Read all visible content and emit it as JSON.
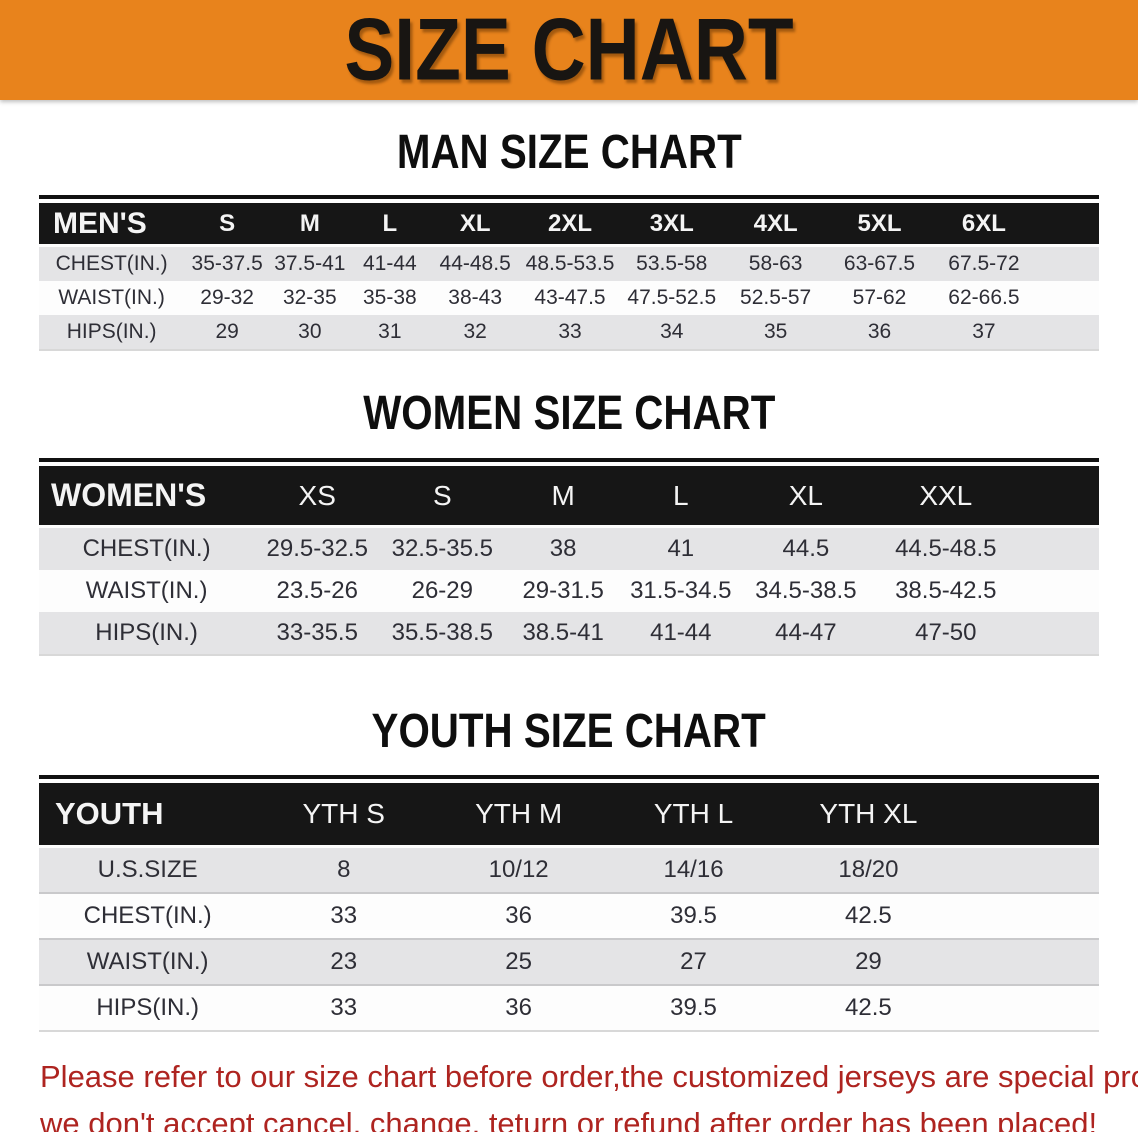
{
  "banner": {
    "title": "SIZE CHART"
  },
  "colors": {
    "banner_bg": "#e8831c",
    "table_header_bg": "#161616",
    "row_alt": "#e4e4e6",
    "cell_text": "#2e2e36",
    "footnote_red": "#ae2420"
  },
  "sections": [
    {
      "heading": "MAN SIZE CHART",
      "table": {
        "header": [
          "MEN'S",
          "S",
          "M",
          "L",
          "XL",
          "2XL",
          "3XL",
          "4XL",
          "5XL",
          "6XL"
        ],
        "rows": [
          [
            "CHEST(IN.)",
            "35-37.5",
            "37.5-41",
            "41-44",
            "44-48.5",
            "48.5-53.5",
            "53.5-58",
            "58-63",
            "63-67.5",
            "67.5-72"
          ],
          [
            "WAIST(IN.)",
            "29-32",
            "32-35",
            "35-38",
            "38-43",
            "43-47.5",
            "47.5-52.5",
            "52.5-57",
            "57-62",
            "62-66.5"
          ],
          [
            "HIPS(IN.)",
            "29",
            "30",
            "31",
            "32",
            "33",
            "34",
            "35",
            "36",
            "37"
          ]
        ]
      }
    },
    {
      "heading": "WOMEN SIZE CHART",
      "table": {
        "header": [
          "WOMEN'S",
          "XS",
          "S",
          "M",
          "L",
          "XL",
          "XXL"
        ],
        "rows": [
          [
            "CHEST(IN.)",
            "29.5-32.5",
            "32.5-35.5",
            "38",
            "41",
            "44.5",
            "44.5-48.5"
          ],
          [
            "WAIST(IN.)",
            "23.5-26",
            "26-29",
            "29-31.5",
            "31.5-34.5",
            "34.5-38.5",
            "38.5-42.5"
          ],
          [
            "HIPS(IN.)",
            "33-35.5",
            "35.5-38.5",
            "38.5-41",
            "41-44",
            "44-47",
            "47-50"
          ]
        ]
      }
    },
    {
      "heading": "YOUTH SIZE CHART",
      "table": {
        "header": [
          "YOUTH",
          "YTH S",
          "YTH M",
          "YTH L",
          "YTH XL"
        ],
        "rows": [
          [
            "U.S.SIZE",
            "8",
            "10/12",
            "14/16",
            "18/20"
          ],
          [
            "CHEST(IN.)",
            "33",
            "36",
            "39.5",
            "42.5"
          ],
          [
            "WAIST(IN.)",
            "23",
            "25",
            "27",
            "29"
          ],
          [
            "HIPS(IN.)",
            "33",
            "36",
            "39.5",
            "42.5"
          ]
        ]
      }
    }
  ],
  "footnote": {
    "lines": [
      "Please refer to our size chart before order,the customized jerseys are special products,",
      "we don't accept cancel, change, teturn or refund after order has been placed!"
    ]
  }
}
